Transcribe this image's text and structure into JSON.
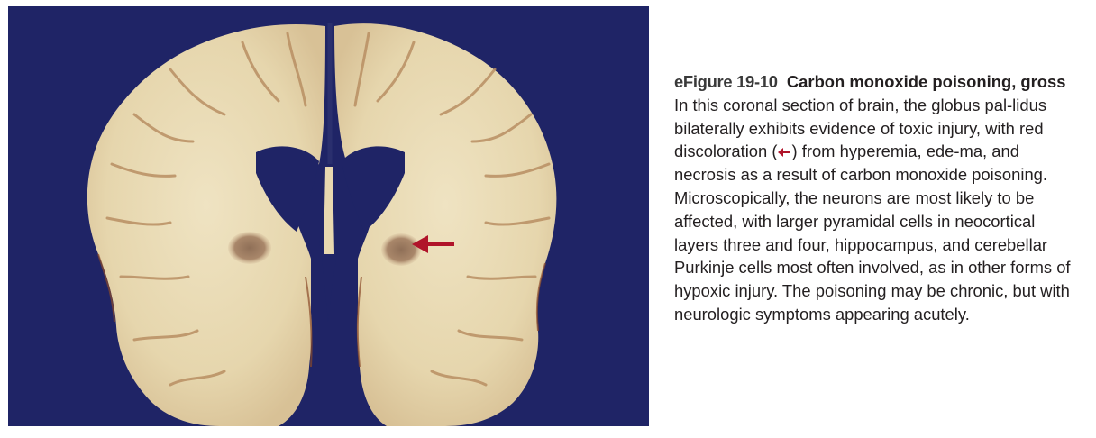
{
  "figure": {
    "label": "eFigure 19-10",
    "title": "Carbon monoxide poisoning, gross",
    "body_before_arrow": "In this coronal section of brain, the globus pal-lidus bilaterally exhibits evidence of toxic injury, with red discoloration (",
    "body_after_arrow": ") from hyperemia, ede-ma, and necrosis as a result of carbon monoxide poisoning. Microscopically, the neurons are most likely to be affected, with larger pyramidal cells in neocortical layers three and four, hippocampus, and cerebellar Purkinje cells most often involved, as in other forms of hypoxic injury. The poisoning may be chronic, but with neurologic symptoms appearing acutely.",
    "arrow_icon": "left-arrow-icon",
    "colors": {
      "background": "#1f2466",
      "tissue": "#e9dcb8",
      "arrow": "#b0142a"
    }
  }
}
